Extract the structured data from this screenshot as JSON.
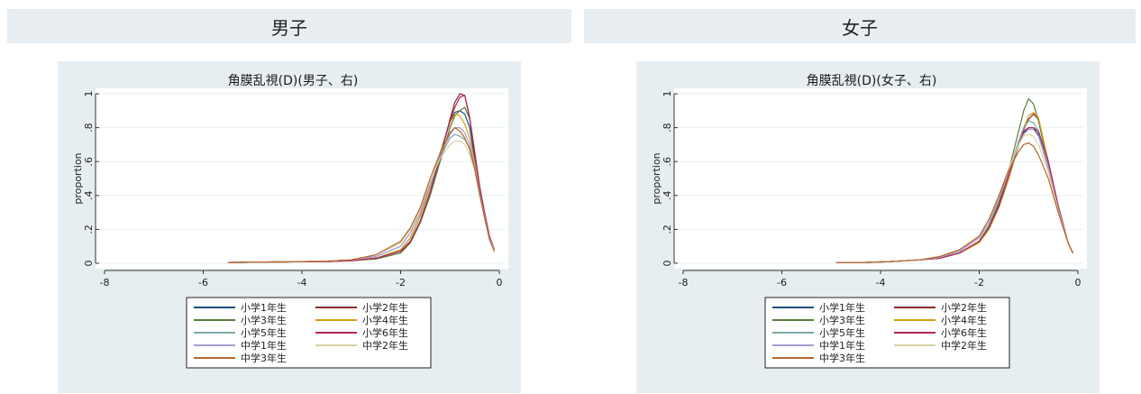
{
  "panels": [
    {
      "header": "男子"
    },
    {
      "header": "女子"
    }
  ],
  "chart_data": [
    {
      "type": "line",
      "title": "角膜乱視(D)(男子、右)",
      "xlabel": "",
      "ylabel": "proportion",
      "xlim": [
        -8,
        0
      ],
      "ylim": [
        0,
        1
      ],
      "xticks": [
        -8,
        -6,
        -4,
        -2,
        0
      ],
      "yticks": [
        0,
        0.2,
        0.4,
        0.6,
        0.8,
        1
      ],
      "ytick_labels": [
        "0",
        ".2",
        ".4",
        ".6",
        ".8",
        "1"
      ],
      "grid": true,
      "legend_position": "bottom",
      "series": [
        {
          "name": "小学1年生",
          "color": "#1f4e79",
          "x": [
            -5.5,
            -4.5,
            -3.5,
            -3.0,
            -2.5,
            -2.0,
            -1.8,
            -1.6,
            -1.4,
            -1.2,
            -1.0,
            -0.9,
            -0.8,
            -0.7,
            -0.6,
            -0.5,
            -0.4,
            -0.3,
            -0.2,
            -0.1
          ],
          "y": [
            0.005,
            0.008,
            0.01,
            0.015,
            0.03,
            0.08,
            0.15,
            0.28,
            0.45,
            0.65,
            0.84,
            0.89,
            0.9,
            0.88,
            0.8,
            0.62,
            0.42,
            0.28,
            0.15,
            0.08
          ]
        },
        {
          "name": "小学2年生",
          "color": "#8b2a2a",
          "x": [
            -5.5,
            -4.5,
            -3.5,
            -3.0,
            -2.5,
            -2.0,
            -1.8,
            -1.6,
            -1.4,
            -1.2,
            -1.0,
            -0.9,
            -0.8,
            -0.7,
            -0.6,
            -0.5,
            -0.4,
            -0.3,
            -0.2,
            -0.1
          ],
          "y": [
            0.005,
            0.008,
            0.01,
            0.015,
            0.03,
            0.07,
            0.13,
            0.25,
            0.42,
            0.62,
            0.85,
            0.95,
            1.0,
            0.99,
            0.85,
            0.65,
            0.44,
            0.3,
            0.16,
            0.08
          ]
        },
        {
          "name": "小学3年生",
          "color": "#5b7d3a",
          "x": [
            -5.5,
            -4.5,
            -3.5,
            -3.0,
            -2.5,
            -2.0,
            -1.8,
            -1.6,
            -1.4,
            -1.2,
            -1.0,
            -0.9,
            -0.8,
            -0.7,
            -0.6,
            -0.5,
            -0.4,
            -0.3,
            -0.2,
            -0.1
          ],
          "y": [
            0.005,
            0.007,
            0.01,
            0.015,
            0.025,
            0.06,
            0.12,
            0.24,
            0.4,
            0.6,
            0.8,
            0.87,
            0.9,
            0.92,
            0.85,
            0.66,
            0.45,
            0.3,
            0.16,
            0.08
          ]
        },
        {
          "name": "小学4年生",
          "color": "#d4a017",
          "x": [
            -5.5,
            -4.5,
            -3.5,
            -3.0,
            -2.5,
            -2.0,
            -1.8,
            -1.6,
            -1.4,
            -1.2,
            -1.0,
            -0.9,
            -0.8,
            -0.7,
            -0.6,
            -0.5,
            -0.4,
            -0.3,
            -0.2,
            -0.1
          ],
          "y": [
            0.005,
            0.008,
            0.01,
            0.015,
            0.03,
            0.08,
            0.15,
            0.28,
            0.45,
            0.65,
            0.83,
            0.88,
            0.87,
            0.82,
            0.74,
            0.6,
            0.42,
            0.28,
            0.15,
            0.08
          ]
        },
        {
          "name": "小学5年生",
          "color": "#7fa7a7",
          "x": [
            -5.5,
            -4.5,
            -3.5,
            -3.0,
            -2.5,
            -2.0,
            -1.8,
            -1.6,
            -1.4,
            -1.2,
            -1.0,
            -0.9,
            -0.8,
            -0.7,
            -0.6,
            -0.5,
            -0.4,
            -0.3,
            -0.2,
            -0.1
          ],
          "y": [
            0.005,
            0.008,
            0.012,
            0.02,
            0.04,
            0.1,
            0.18,
            0.3,
            0.46,
            0.62,
            0.74,
            0.76,
            0.75,
            0.73,
            0.68,
            0.57,
            0.42,
            0.28,
            0.15,
            0.08
          ]
        },
        {
          "name": "小学6年生",
          "color": "#b0245c",
          "x": [
            -5.5,
            -4.5,
            -3.5,
            -3.0,
            -2.5,
            -2.0,
            -1.8,
            -1.6,
            -1.4,
            -1.2,
            -1.0,
            -0.9,
            -0.8,
            -0.7,
            -0.6,
            -0.5,
            -0.4,
            -0.3,
            -0.2,
            -0.1
          ],
          "y": [
            0.005,
            0.008,
            0.01,
            0.015,
            0.03,
            0.07,
            0.13,
            0.25,
            0.42,
            0.63,
            0.84,
            0.92,
            0.98,
            0.99,
            0.86,
            0.66,
            0.46,
            0.3,
            0.16,
            0.08
          ]
        },
        {
          "name": "中学1年生",
          "color": "#a99bd4",
          "x": [
            -5.5,
            -4.5,
            -3.5,
            -3.0,
            -2.5,
            -2.0,
            -1.8,
            -1.6,
            -1.4,
            -1.2,
            -1.0,
            -0.9,
            -0.8,
            -0.7,
            -0.6,
            -0.5,
            -0.4,
            -0.3,
            -0.2,
            -0.1
          ],
          "y": [
            0.005,
            0.008,
            0.012,
            0.02,
            0.04,
            0.1,
            0.18,
            0.3,
            0.47,
            0.64,
            0.76,
            0.8,
            0.8,
            0.77,
            0.7,
            0.58,
            0.42,
            0.28,
            0.15,
            0.08
          ]
        },
        {
          "name": "中学2年生",
          "color": "#d8d2a0",
          "x": [
            -5.5,
            -4.5,
            -3.5,
            -3.0,
            -2.5,
            -2.0,
            -1.8,
            -1.6,
            -1.4,
            -1.2,
            -1.0,
            -0.9,
            -0.8,
            -0.7,
            -0.6,
            -0.5,
            -0.4,
            -0.3,
            -0.2,
            -0.1
          ],
          "y": [
            0.005,
            0.008,
            0.012,
            0.02,
            0.05,
            0.12,
            0.2,
            0.32,
            0.48,
            0.62,
            0.7,
            0.72,
            0.72,
            0.7,
            0.64,
            0.55,
            0.4,
            0.27,
            0.14,
            0.07
          ]
        },
        {
          "name": "中学3年生",
          "color": "#b5652b",
          "x": [
            -5.5,
            -4.5,
            -3.5,
            -3.0,
            -2.5,
            -2.0,
            -1.8,
            -1.6,
            -1.4,
            -1.2,
            -1.0,
            -0.9,
            -0.8,
            -0.7,
            -0.6,
            -0.5,
            -0.4,
            -0.3,
            -0.2,
            -0.1
          ],
          "y": [
            0.005,
            0.008,
            0.012,
            0.02,
            0.05,
            0.13,
            0.21,
            0.33,
            0.5,
            0.65,
            0.77,
            0.8,
            0.78,
            0.74,
            0.67,
            0.56,
            0.41,
            0.27,
            0.14,
            0.07
          ]
        }
      ]
    },
    {
      "type": "line",
      "title": "角膜乱視(D)(女子、右)",
      "xlabel": "",
      "ylabel": "proportion",
      "xlim": [
        -8,
        0
      ],
      "ylim": [
        0,
        1
      ],
      "xticks": [
        -8,
        -6,
        -4,
        -2,
        0
      ],
      "yticks": [
        0,
        0.2,
        0.4,
        0.6,
        0.8,
        1
      ],
      "ytick_labels": [
        "0",
        ".2",
        ".4",
        ".6",
        ".8",
        "1"
      ],
      "grid": true,
      "legend_position": "bottom",
      "series": [
        {
          "name": "小学1年生",
          "color": "#1f4e79",
          "x": [
            -4.9,
            -4.3,
            -3.8,
            -3.2,
            -2.8,
            -2.4,
            -2.0,
            -1.8,
            -1.6,
            -1.4,
            -1.2,
            -1.1,
            -1.0,
            -0.9,
            -0.8,
            -0.6,
            -0.4,
            -0.2,
            -0.1
          ],
          "y": [
            0.005,
            0.005,
            0.01,
            0.02,
            0.03,
            0.06,
            0.13,
            0.22,
            0.35,
            0.52,
            0.7,
            0.77,
            0.8,
            0.8,
            0.76,
            0.56,
            0.32,
            0.12,
            0.06
          ]
        },
        {
          "name": "小学2年生",
          "color": "#8b2a2a",
          "x": [
            -4.9,
            -4.3,
            -3.8,
            -3.2,
            -2.8,
            -2.4,
            -2.0,
            -1.8,
            -1.6,
            -1.4,
            -1.2,
            -1.1,
            -1.0,
            -0.9,
            -0.8,
            -0.6,
            -0.4,
            -0.2,
            -0.1
          ],
          "y": [
            0.005,
            0.005,
            0.01,
            0.02,
            0.03,
            0.06,
            0.13,
            0.21,
            0.33,
            0.5,
            0.7,
            0.79,
            0.85,
            0.88,
            0.85,
            0.6,
            0.34,
            0.12,
            0.06
          ]
        },
        {
          "name": "小学3年生",
          "color": "#5b7d3a",
          "x": [
            -4.9,
            -4.3,
            -3.8,
            -3.2,
            -2.8,
            -2.4,
            -2.0,
            -1.8,
            -1.6,
            -1.4,
            -1.2,
            -1.1,
            -1.0,
            -0.9,
            -0.8,
            -0.6,
            -0.4,
            -0.2,
            -0.1
          ],
          "y": [
            0.005,
            0.005,
            0.01,
            0.02,
            0.03,
            0.06,
            0.13,
            0.22,
            0.36,
            0.55,
            0.78,
            0.9,
            0.97,
            0.94,
            0.84,
            0.58,
            0.33,
            0.12,
            0.06
          ]
        },
        {
          "name": "小学4年生",
          "color": "#d4a017",
          "x": [
            -4.9,
            -4.3,
            -3.8,
            -3.2,
            -2.8,
            -2.4,
            -2.0,
            -1.8,
            -1.6,
            -1.4,
            -1.2,
            -1.1,
            -1.0,
            -0.9,
            -0.8,
            -0.6,
            -0.4,
            -0.2,
            -0.1
          ],
          "y": [
            0.005,
            0.005,
            0.01,
            0.02,
            0.03,
            0.06,
            0.12,
            0.2,
            0.33,
            0.5,
            0.7,
            0.8,
            0.87,
            0.89,
            0.86,
            0.6,
            0.33,
            0.12,
            0.06
          ]
        },
        {
          "name": "小学5年生",
          "color": "#7fa7a7",
          "x": [
            -4.9,
            -4.3,
            -3.8,
            -3.2,
            -2.8,
            -2.4,
            -2.0,
            -1.8,
            -1.6,
            -1.4,
            -1.2,
            -1.1,
            -1.0,
            -0.9,
            -0.8,
            -0.6,
            -0.4,
            -0.2,
            -0.1
          ],
          "y": [
            0.005,
            0.005,
            0.01,
            0.02,
            0.035,
            0.07,
            0.15,
            0.24,
            0.38,
            0.55,
            0.72,
            0.8,
            0.84,
            0.83,
            0.78,
            0.57,
            0.32,
            0.12,
            0.06
          ]
        },
        {
          "name": "小学6年生",
          "color": "#b0245c",
          "x": [
            -4.9,
            -4.3,
            -3.8,
            -3.2,
            -2.8,
            -2.4,
            -2.0,
            -1.8,
            -1.6,
            -1.4,
            -1.2,
            -1.1,
            -1.0,
            -0.9,
            -0.8,
            -0.6,
            -0.4,
            -0.2,
            -0.1
          ],
          "y": [
            0.005,
            0.005,
            0.01,
            0.02,
            0.03,
            0.06,
            0.13,
            0.21,
            0.34,
            0.52,
            0.7,
            0.78,
            0.8,
            0.8,
            0.78,
            0.6,
            0.34,
            0.12,
            0.06
          ]
        },
        {
          "name": "中学1年生",
          "color": "#a99bd4",
          "x": [
            -4.9,
            -4.3,
            -3.8,
            -3.2,
            -2.8,
            -2.4,
            -2.0,
            -1.8,
            -1.6,
            -1.4,
            -1.2,
            -1.1,
            -1.0,
            -0.9,
            -0.8,
            -0.6,
            -0.4,
            -0.2,
            -0.1
          ],
          "y": [
            0.005,
            0.005,
            0.01,
            0.02,
            0.035,
            0.07,
            0.15,
            0.24,
            0.38,
            0.54,
            0.7,
            0.76,
            0.79,
            0.79,
            0.75,
            0.56,
            0.32,
            0.12,
            0.06
          ]
        },
        {
          "name": "中学2年生",
          "color": "#d8d2a0",
          "x": [
            -4.9,
            -4.3,
            -3.8,
            -3.2,
            -2.8,
            -2.4,
            -2.0,
            -1.8,
            -1.6,
            -1.4,
            -1.2,
            -1.1,
            -1.0,
            -0.9,
            -0.8,
            -0.6,
            -0.4,
            -0.2,
            -0.1
          ],
          "y": [
            0.005,
            0.005,
            0.01,
            0.02,
            0.04,
            0.08,
            0.16,
            0.26,
            0.4,
            0.56,
            0.7,
            0.75,
            0.76,
            0.75,
            0.7,
            0.54,
            0.31,
            0.12,
            0.06
          ]
        },
        {
          "name": "中学3年生",
          "color": "#b5652b",
          "x": [
            -4.9,
            -4.3,
            -3.8,
            -3.2,
            -2.8,
            -2.4,
            -2.0,
            -1.8,
            -1.6,
            -1.4,
            -1.2,
            -1.1,
            -1.0,
            -0.9,
            -0.8,
            -0.6,
            -0.4,
            -0.2,
            -0.1
          ],
          "y": [
            0.005,
            0.005,
            0.01,
            0.02,
            0.04,
            0.08,
            0.16,
            0.26,
            0.4,
            0.55,
            0.66,
            0.7,
            0.71,
            0.69,
            0.64,
            0.5,
            0.3,
            0.12,
            0.06
          ]
        }
      ]
    }
  ]
}
